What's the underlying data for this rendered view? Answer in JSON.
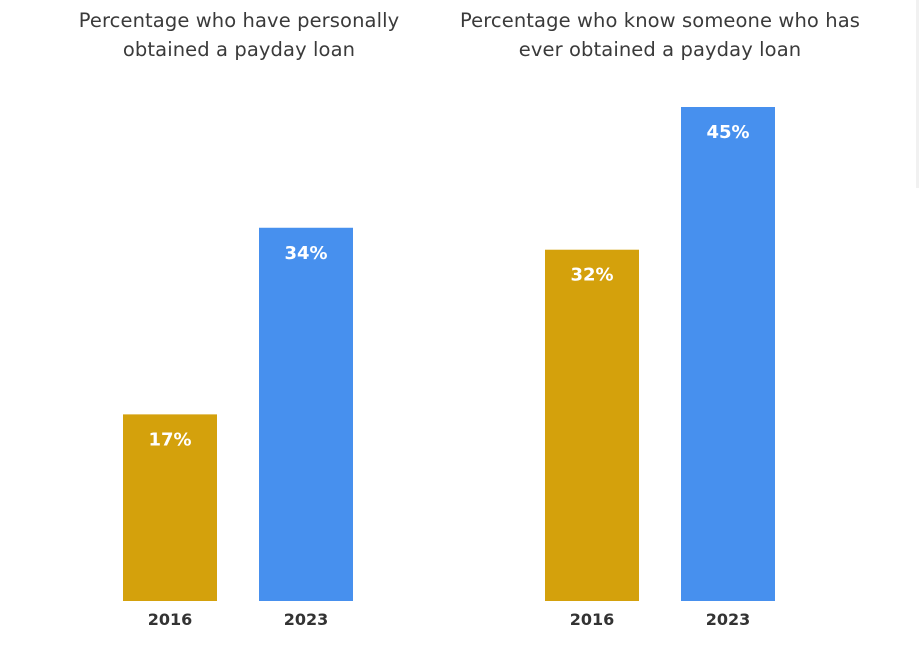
{
  "colors": {
    "2016": "#d4a10c",
    "2023": "#4790ee",
    "value_label": "#ffffff",
    "title": "#3a3a3a",
    "tick_label": "#333333"
  },
  "chart_data": [
    {
      "type": "bar",
      "title": "Percentage who have personally obtained a payday loan",
      "categories": [
        "2016",
        "2023"
      ],
      "values": [
        17,
        34
      ],
      "value_labels": [
        "17%",
        "34%"
      ],
      "ylim": [
        0,
        45
      ],
      "grid": false,
      "legend": "none"
    },
    {
      "type": "bar",
      "title": "Percentage who know someone who has ever obtained a payday loan",
      "categories": [
        "2016",
        "2023"
      ],
      "values": [
        32,
        45
      ],
      "value_labels": [
        "32%",
        "45%"
      ],
      "ylim": [
        0,
        45
      ],
      "grid": false,
      "legend": "none"
    }
  ]
}
